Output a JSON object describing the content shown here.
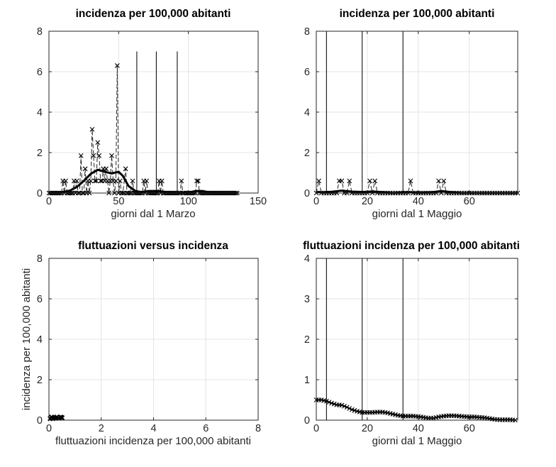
{
  "chart_data": [
    {
      "type": "line",
      "title": "incidenza per 100,000 abitanti",
      "xlabel": "giorni dal 1 Marzo",
      "ylabel": "",
      "xlim": [
        0,
        150
      ],
      "ylim": [
        0,
        8
      ],
      "xticks": [
        0,
        50,
        100,
        150
      ],
      "yticks": [
        0,
        2,
        4,
        6,
        8
      ],
      "grid": true,
      "vlines": {
        "x": [
          63,
          77,
          92
        ],
        "top": 7
      },
      "series": [
        {
          "name": "daily",
          "style": "dashed-x",
          "x_start": 0,
          "points": [
            [
              0,
              0
            ],
            [
              9,
              0
            ],
            [
              10,
              0.6
            ],
            [
              11,
              0
            ],
            [
              12,
              0.6
            ],
            [
              13,
              0
            ],
            [
              17,
              0
            ],
            [
              18,
              0.6
            ],
            [
              19,
              0
            ],
            [
              20,
              0.6
            ],
            [
              21,
              0
            ],
            [
              22,
              0
            ],
            [
              23,
              1.85
            ],
            [
              24,
              0
            ],
            [
              25,
              0
            ],
            [
              26,
              1.2
            ],
            [
              27,
              0
            ],
            [
              28,
              0.6
            ],
            [
              29,
              0
            ],
            [
              30,
              0.6
            ],
            [
              31,
              3.15
            ],
            [
              32,
              1.85
            ],
            [
              33,
              0.6
            ],
            [
              34,
              0.6
            ],
            [
              35,
              2.5
            ],
            [
              36,
              1.85
            ],
            [
              37,
              0.6
            ],
            [
              38,
              0.6
            ],
            [
              39,
              1.2
            ],
            [
              40,
              0.6
            ],
            [
              41,
              1.2
            ],
            [
              42,
              0.6
            ],
            [
              43,
              0
            ],
            [
              44,
              0.6
            ],
            [
              45,
              1.85
            ],
            [
              46,
              0.6
            ],
            [
              47,
              0
            ],
            [
              48,
              0.6
            ],
            [
              49,
              6.3
            ],
            [
              50,
              0
            ],
            [
              51,
              0.6
            ],
            [
              52,
              0
            ],
            [
              53,
              0
            ],
            [
              55,
              1.2
            ],
            [
              56,
              0
            ],
            [
              58,
              0
            ],
            [
              60,
              0.6
            ],
            [
              61,
              0
            ],
            [
              67,
              0
            ],
            [
              68,
              0.6
            ],
            [
              69,
              0
            ],
            [
              70,
              0.6
            ],
            [
              71,
              0
            ],
            [
              78,
              0
            ],
            [
              79,
              0.6
            ],
            [
              80,
              0
            ],
            [
              81,
              0.6
            ],
            [
              82,
              0
            ],
            [
              94,
              0
            ],
            [
              95,
              0.6
            ],
            [
              96,
              0
            ],
            [
              105,
              0
            ],
            [
              106,
              0.6
            ],
            [
              107,
              0.6
            ],
            [
              108,
              0
            ],
            [
              135,
              0
            ]
          ]
        },
        {
          "name": "smoothed",
          "style": "thick",
          "points": [
            [
              0,
              0
            ],
            [
              10,
              0.05
            ],
            [
              15,
              0.12
            ],
            [
              20,
              0.3
            ],
            [
              25,
              0.6
            ],
            [
              30,
              0.95
            ],
            [
              35,
              1.15
            ],
            [
              40,
              1.05
            ],
            [
              45,
              0.97
            ],
            [
              50,
              1.05
            ],
            [
              53,
              0.85
            ],
            [
              57,
              0.35
            ],
            [
              62,
              0.1
            ],
            [
              66,
              0.05
            ],
            [
              72,
              0.1
            ],
            [
              78,
              0.1
            ],
            [
              84,
              0.05
            ],
            [
              90,
              0
            ],
            [
              100,
              0.02
            ],
            [
              105,
              0.1
            ],
            [
              110,
              0.1
            ],
            [
              115,
              0.03
            ],
            [
              120,
              0
            ],
            [
              135,
              0
            ]
          ]
        }
      ]
    },
    {
      "type": "line",
      "title": "incidenza per 100,000 abitanti",
      "xlabel": "giorni dal 1 Maggio",
      "ylabel": "",
      "xlim": [
        0,
        79
      ],
      "ylim": [
        0,
        8
      ],
      "xticks": [
        0,
        20,
        40,
        60
      ],
      "yticks": [
        0,
        2,
        4,
        6,
        8
      ],
      "grid": true,
      "vlines": {
        "x": [
          4,
          18,
          34
        ],
        "top": 8
      },
      "series": [
        {
          "name": "daily",
          "style": "dashed-x",
          "points": [
            [
              0,
              0
            ],
            [
              1,
              0.6
            ],
            [
              2,
              0
            ],
            [
              8,
              0
            ],
            [
              9,
              0.6
            ],
            [
              10,
              0.6
            ],
            [
              11,
              0
            ],
            [
              12,
              0
            ],
            [
              13,
              0.6
            ],
            [
              14,
              0
            ],
            [
              20,
              0
            ],
            [
              21,
              0.6
            ],
            [
              22,
              0
            ],
            [
              23,
              0.6
            ],
            [
              24,
              0
            ],
            [
              36,
              0
            ],
            [
              37,
              0.6
            ],
            [
              38,
              0
            ],
            [
              47,
              0
            ],
            [
              48,
              0.6
            ],
            [
              49,
              0
            ],
            [
              50,
              0.6
            ],
            [
              51,
              0
            ],
            [
              79,
              0
            ]
          ]
        },
        {
          "name": "smoothed",
          "style": "thick",
          "points": [
            [
              0,
              0.05
            ],
            [
              3,
              0.03
            ],
            [
              6,
              0.06
            ],
            [
              10,
              0.12
            ],
            [
              14,
              0.07
            ],
            [
              18,
              0.05
            ],
            [
              22,
              0.08
            ],
            [
              26,
              0.04
            ],
            [
              30,
              0
            ],
            [
              36,
              0.04
            ],
            [
              40,
              0.01
            ],
            [
              45,
              0.03
            ],
            [
              49,
              0.1
            ],
            [
              53,
              0.04
            ],
            [
              57,
              0
            ],
            [
              79,
              0
            ]
          ]
        }
      ]
    },
    {
      "type": "scatter",
      "title": "fluttuazioni versus incidenza",
      "xlabel": "fluttuazioni incidenza per 100,000 abitanti",
      "ylabel": "incidenza per 100,000 abitanti",
      "xlim": [
        0,
        8
      ],
      "ylim": [
        0,
        8
      ],
      "xticks": [
        0,
        2,
        4,
        6,
        8
      ],
      "yticks": [
        0,
        2,
        4,
        6,
        8
      ],
      "grid": true,
      "series": [
        {
          "name": "points",
          "style": "x",
          "points": [
            [
              0.05,
              0.08
            ],
            [
              0.1,
              0.15
            ],
            [
              0.15,
              0.08
            ],
            [
              0.2,
              0.12
            ],
            [
              0.25,
              0.1
            ],
            [
              0.3,
              0.15
            ],
            [
              0.38,
              0.1
            ],
            [
              0.45,
              0.15
            ],
            [
              0.5,
              0.12
            ]
          ]
        }
      ]
    },
    {
      "type": "line",
      "title": "fluttuazioni incidenza per 100,000 abitanti",
      "xlabel": "giorni dal 1 Maggio",
      "ylabel": "",
      "xlim": [
        0,
        79
      ],
      "ylim": [
        0,
        4
      ],
      "xticks": [
        0,
        20,
        40,
        60
      ],
      "yticks": [
        0,
        1,
        2,
        3,
        4
      ],
      "grid": true,
      "vlines": {
        "x": [
          4,
          18,
          34
        ],
        "top": 4
      },
      "series": [
        {
          "name": "fluctuations",
          "style": "solid-x",
          "points": [
            [
              0,
              0.5
            ],
            [
              2,
              0.5
            ],
            [
              4,
              0.47
            ],
            [
              6,
              0.42
            ],
            [
              8,
              0.38
            ],
            [
              10,
              0.37
            ],
            [
              12,
              0.32
            ],
            [
              14,
              0.26
            ],
            [
              16,
              0.22
            ],
            [
              18,
              0.19
            ],
            [
              20,
              0.19
            ],
            [
              22,
              0.19
            ],
            [
              24,
              0.2
            ],
            [
              26,
              0.2
            ],
            [
              28,
              0.18
            ],
            [
              30,
              0.15
            ],
            [
              32,
              0.12
            ],
            [
              34,
              0.1
            ],
            [
              36,
              0.1
            ],
            [
              38,
              0.1
            ],
            [
              40,
              0.09
            ],
            [
              42,
              0.07
            ],
            [
              44,
              0.05
            ],
            [
              46,
              0.05
            ],
            [
              48,
              0.08
            ],
            [
              50,
              0.1
            ],
            [
              52,
              0.11
            ],
            [
              54,
              0.11
            ],
            [
              56,
              0.1
            ],
            [
              58,
              0.09
            ],
            [
              60,
              0.08
            ],
            [
              62,
              0.08
            ],
            [
              64,
              0.07
            ],
            [
              66,
              0.06
            ],
            [
              68,
              0.04
            ],
            [
              70,
              0.02
            ],
            [
              72,
              0.01
            ],
            [
              74,
              0.01
            ],
            [
              76,
              0.01
            ],
            [
              78,
              0
            ]
          ]
        }
      ]
    }
  ]
}
